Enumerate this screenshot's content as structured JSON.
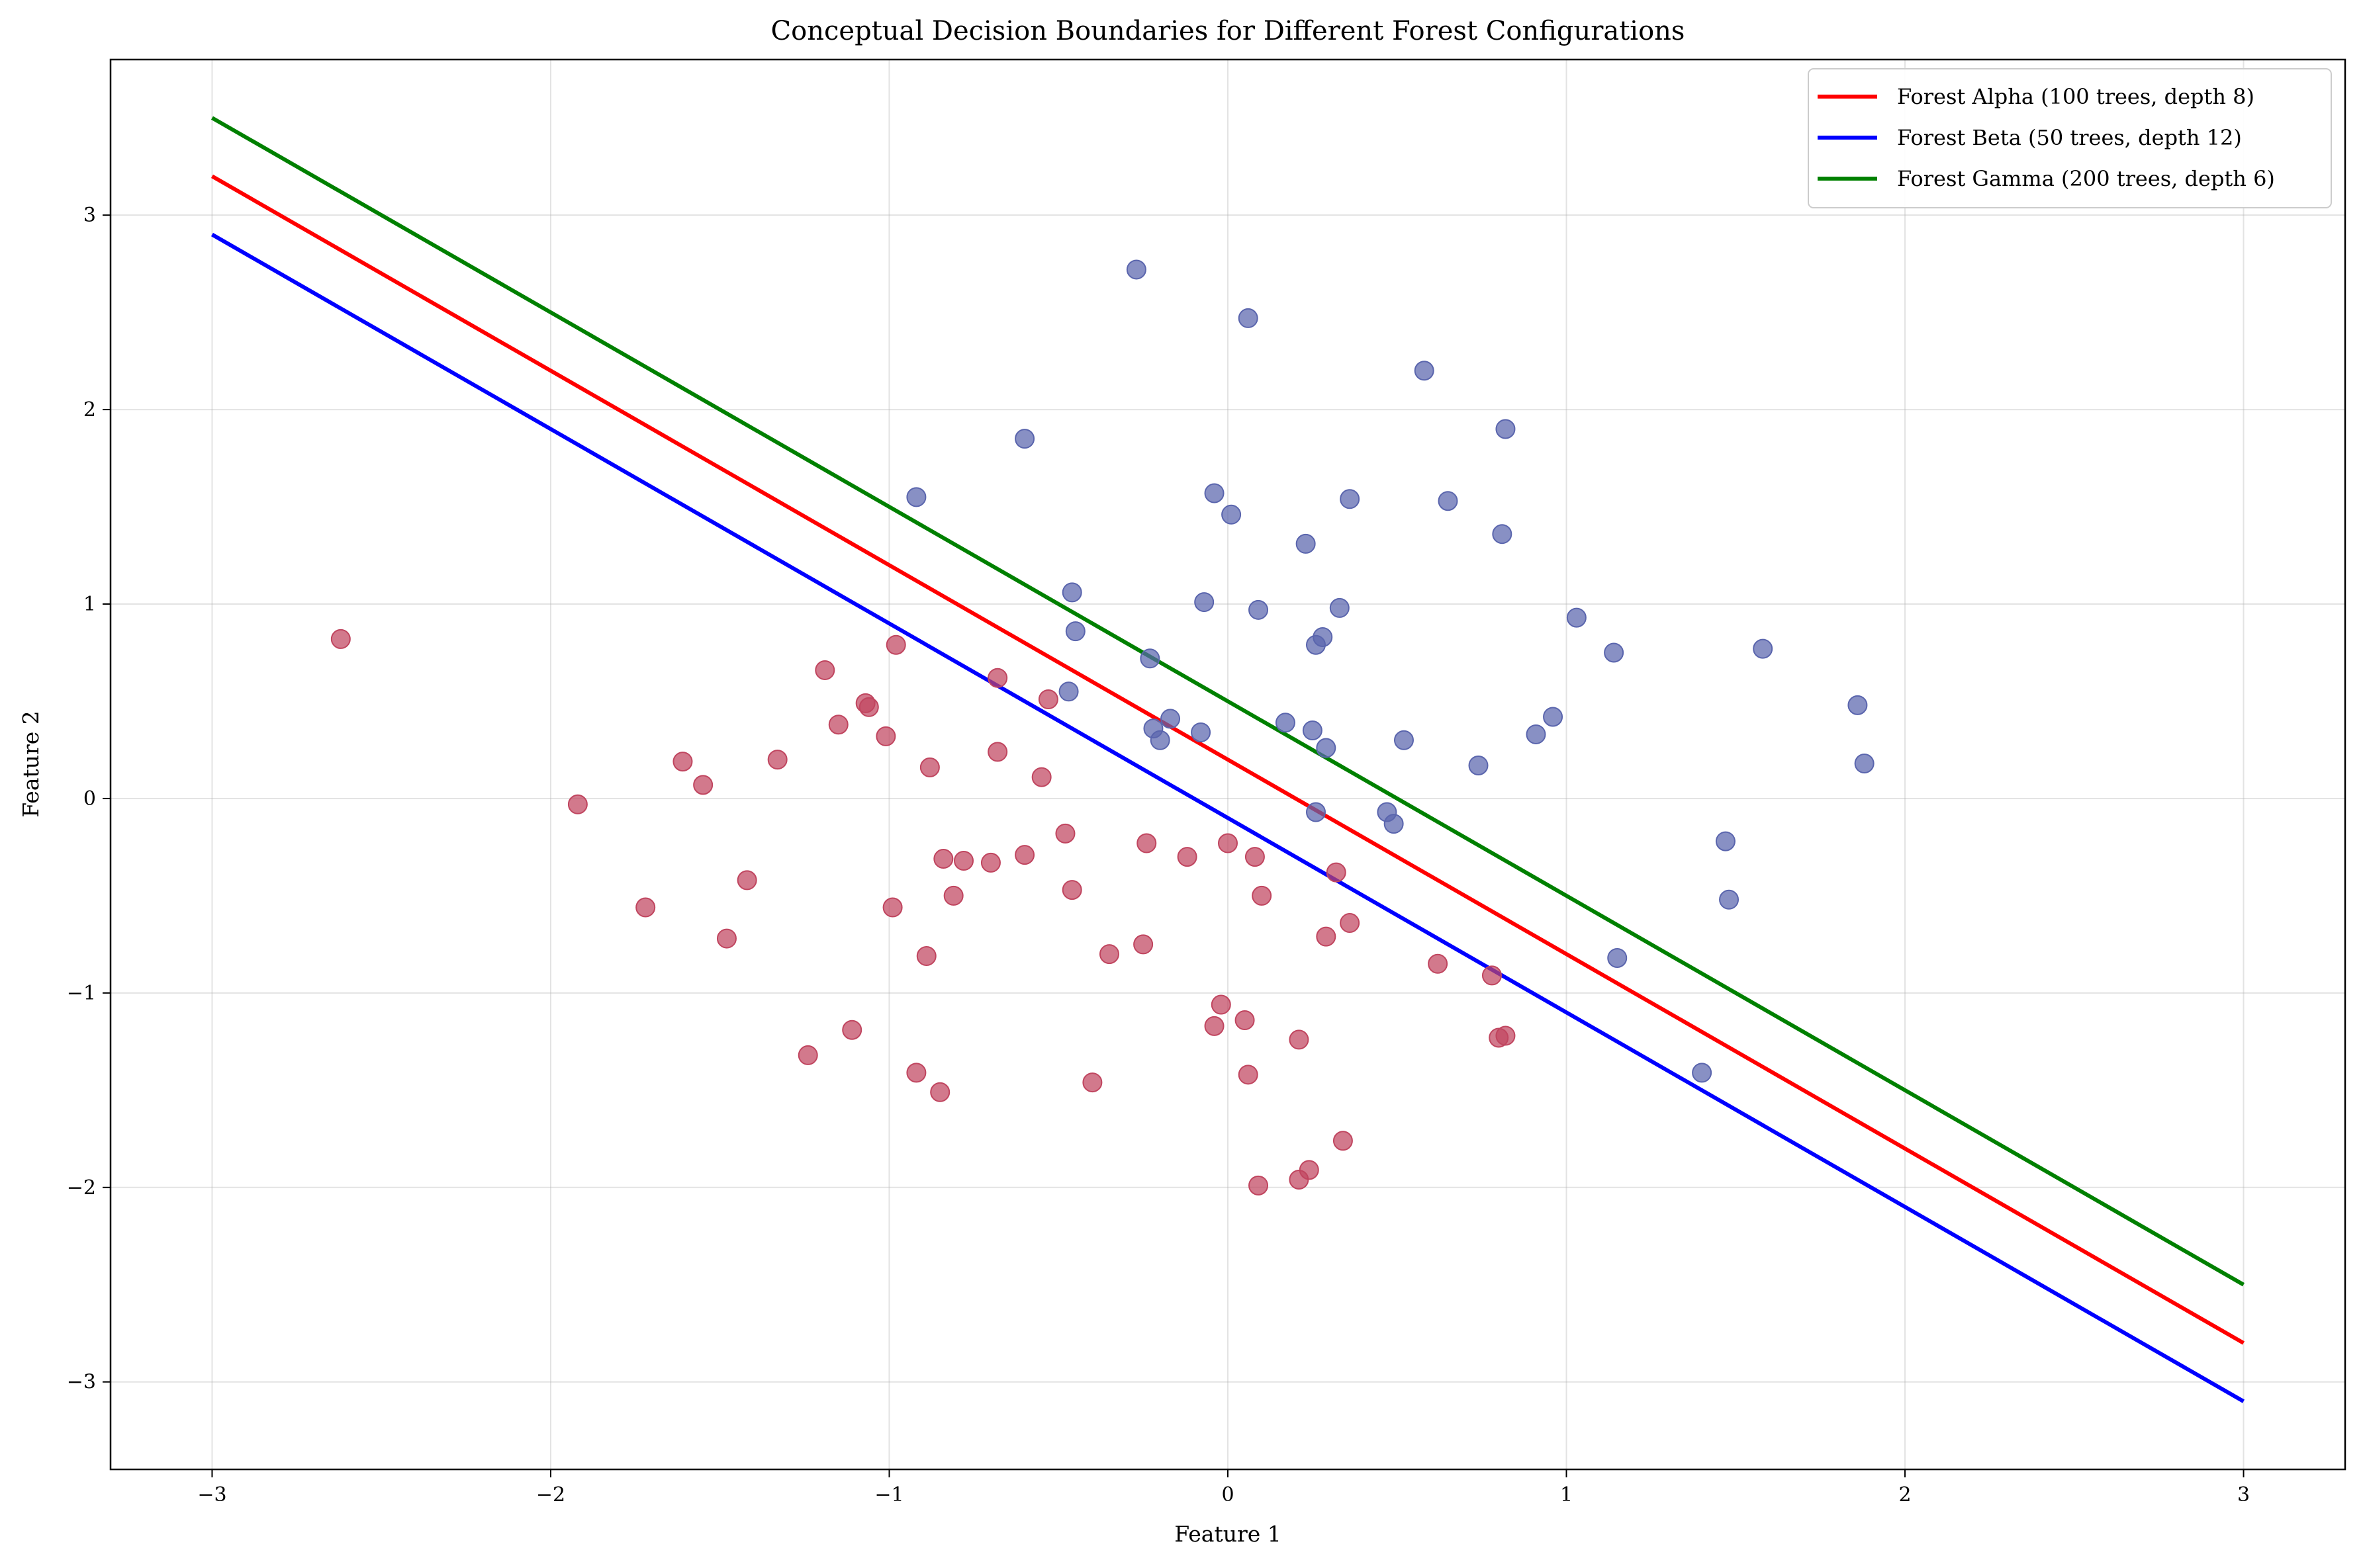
{
  "chart_data": {
    "type": "scatter",
    "title": "Conceptual Decision Boundaries for Different Forest Configurations",
    "xlabel": "Feature 1",
    "ylabel": "Feature 2",
    "xlim": [
      -3.3,
      3.3
    ],
    "ylim": [
      -3.45,
      3.8
    ],
    "x_ticks": [
      -3,
      -2,
      -1,
      0,
      1,
      2,
      3
    ],
    "y_ticks": [
      -3,
      -2,
      -1,
      0,
      1,
      2,
      3
    ],
    "x_tick_labels": [
      "−3",
      "−2",
      "−1",
      "0",
      "1",
      "2",
      "3"
    ],
    "y_tick_labels": [
      "−3",
      "−2",
      "−1",
      "0",
      "1",
      "2",
      "3"
    ],
    "grid": true,
    "legend_position": "top-right",
    "series": [
      {
        "name": "Forest Alpha (100 trees, depth 8)",
        "kind": "line",
        "color": "#ff0000",
        "x": [
          -3,
          3
        ],
        "y": [
          3.2,
          -2.8
        ]
      },
      {
        "name": "Forest Beta (50 trees, depth 12)",
        "kind": "line",
        "color": "#0000ff",
        "x": [
          -3,
          3
        ],
        "y": [
          2.9,
          -3.1
        ]
      },
      {
        "name": "Forest Gamma (200 trees, depth 6)",
        "kind": "line",
        "color": "#008000",
        "x": [
          -3,
          3
        ],
        "y": [
          3.5,
          -2.5
        ]
      }
    ],
    "points": [
      {
        "class": "positive",
        "color": "#5a65ad",
        "points": [
          [
            -0.27,
            2.72
          ],
          [
            0.06,
            2.47
          ],
          [
            0.58,
            2.2
          ],
          [
            0.82,
            1.9
          ],
          [
            -0.6,
            1.85
          ],
          [
            -0.92,
            1.55
          ],
          [
            -0.04,
            1.57
          ],
          [
            0.01,
            1.46
          ],
          [
            0.36,
            1.54
          ],
          [
            0.65,
            1.53
          ],
          [
            0.81,
            1.36
          ],
          [
            0.23,
            1.31
          ],
          [
            -0.46,
            1.06
          ],
          [
            -0.07,
            1.01
          ],
          [
            0.09,
            0.97
          ],
          [
            0.33,
            0.98
          ],
          [
            1.03,
            0.93
          ],
          [
            1.14,
            0.75
          ],
          [
            1.58,
            0.77
          ],
          [
            -0.45,
            0.86
          ],
          [
            0.28,
            0.83
          ],
          [
            0.26,
            0.79
          ],
          [
            -0.23,
            0.72
          ],
          [
            -0.47,
            0.55
          ],
          [
            0.96,
            0.42
          ],
          [
            1.86,
            0.48
          ],
          [
            -0.17,
            0.41
          ],
          [
            0.17,
            0.39
          ],
          [
            -0.22,
            0.36
          ],
          [
            -0.08,
            0.34
          ],
          [
            0.25,
            0.35
          ],
          [
            0.91,
            0.33
          ],
          [
            -0.2,
            0.3
          ],
          [
            0.29,
            0.26
          ],
          [
            0.52,
            0.3
          ],
          [
            0.74,
            0.17
          ],
          [
            1.88,
            0.18
          ],
          [
            0.26,
            -0.07
          ],
          [
            0.47,
            -0.07
          ],
          [
            0.49,
            -0.13
          ],
          [
            1.47,
            -0.22
          ],
          [
            1.48,
            -0.52
          ],
          [
            1.15,
            -0.82
          ],
          [
            1.4,
            -1.41
          ]
        ]
      },
      {
        "class": "negative",
        "color": "#c0455f",
        "points": [
          [
            -2.62,
            0.82
          ],
          [
            -1.19,
            0.66
          ],
          [
            -0.98,
            0.79
          ],
          [
            -0.68,
            0.62
          ],
          [
            -1.07,
            0.49
          ],
          [
            -1.06,
            0.47
          ],
          [
            -0.53,
            0.51
          ],
          [
            -1.15,
            0.38
          ],
          [
            -1.01,
            0.32
          ],
          [
            -1.33,
            0.2
          ],
          [
            -1.61,
            0.19
          ],
          [
            -1.55,
            0.07
          ],
          [
            -0.88,
            0.16
          ],
          [
            -0.68,
            0.24
          ],
          [
            -0.55,
            0.11
          ],
          [
            -1.92,
            -0.03
          ],
          [
            -0.48,
            -0.18
          ],
          [
            -0.24,
            -0.23
          ],
          [
            0.0,
            -0.23
          ],
          [
            -0.84,
            -0.31
          ],
          [
            -0.78,
            -0.32
          ],
          [
            -0.7,
            -0.33
          ],
          [
            -0.6,
            -0.29
          ],
          [
            -0.12,
            -0.3
          ],
          [
            0.08,
            -0.3
          ],
          [
            0.32,
            -0.38
          ],
          [
            -1.42,
            -0.42
          ],
          [
            -0.46,
            -0.47
          ],
          [
            -0.81,
            -0.5
          ],
          [
            0.1,
            -0.5
          ],
          [
            -1.72,
            -0.56
          ],
          [
            -0.99,
            -0.56
          ],
          [
            0.36,
            -0.64
          ],
          [
            -1.48,
            -0.72
          ],
          [
            0.29,
            -0.71
          ],
          [
            -0.25,
            -0.75
          ],
          [
            -0.35,
            -0.8
          ],
          [
            -0.89,
            -0.81
          ],
          [
            0.62,
            -0.85
          ],
          [
            0.78,
            -0.91
          ],
          [
            -0.02,
            -1.06
          ],
          [
            0.05,
            -1.14
          ],
          [
            -0.04,
            -1.17
          ],
          [
            0.8,
            -1.23
          ],
          [
            0.82,
            -1.22
          ],
          [
            -1.11,
            -1.19
          ],
          [
            0.21,
            -1.24
          ],
          [
            -1.24,
            -1.32
          ],
          [
            -0.92,
            -1.41
          ],
          [
            0.06,
            -1.42
          ],
          [
            -0.4,
            -1.46
          ],
          [
            -0.85,
            -1.51
          ],
          [
            0.34,
            -1.76
          ],
          [
            0.24,
            -1.91
          ],
          [
            0.21,
            -1.96
          ],
          [
            0.09,
            -1.99
          ]
        ]
      }
    ]
  }
}
